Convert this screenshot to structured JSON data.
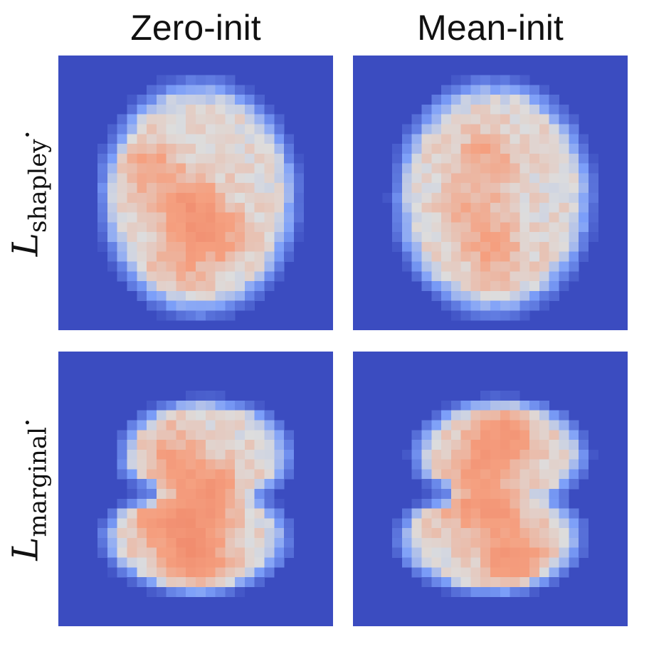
{
  "figure": {
    "column_titles": [
      "Zero-init",
      "Mean-init"
    ],
    "row_titles": [
      {
        "main": "L",
        "sub": "shapley",
        "suffix": "·"
      },
      {
        "main": "L",
        "sub": "marginal",
        "suffix": "·"
      }
    ]
  },
  "colors": {
    "background_low": "#3b4cc0",
    "mid": "#dddddd",
    "high": "#f08a6c",
    "colormap": "coolwarm"
  },
  "chart_data": [
    {
      "type": "heatmap",
      "row": "L_shapley",
      "column": "Zero-init",
      "grid": [
        28,
        28
      ],
      "shape": "oval",
      "hotspots": [
        [
          15,
          13,
          0.9
        ],
        [
          11,
          9,
          0.55
        ],
        [
          18,
          16,
          0.6
        ],
        [
          20,
          12,
          0.5
        ]
      ],
      "value_range": [
        0,
        1
      ]
    },
    {
      "type": "heatmap",
      "row": "L_shapley",
      "column": "Mean-init",
      "grid": [
        28,
        28
      ],
      "shape": "oval",
      "hotspots": [
        [
          10,
          13,
          0.55
        ],
        [
          16,
          12,
          0.5
        ],
        [
          20,
          14,
          0.45
        ]
      ],
      "value_range": [
        0,
        1
      ]
    },
    {
      "type": "heatmap",
      "row": "L_marginal",
      "column": "Zero-init",
      "grid": [
        28,
        28
      ],
      "shape": "digit-3",
      "hotspots": [
        [
          10,
          11,
          0.6
        ],
        [
          14,
          15,
          0.95
        ],
        [
          18,
          12,
          0.75
        ],
        [
          21,
          14,
          0.85
        ],
        [
          16,
          9,
          0.5
        ]
      ],
      "value_range": [
        0,
        1
      ]
    },
    {
      "type": "heatmap",
      "row": "L_marginal",
      "column": "Mean-init",
      "grid": [
        28,
        28
      ],
      "shape": "digit-3",
      "hotspots": [
        [
          8,
          15,
          0.85
        ],
        [
          11,
          12,
          0.55
        ],
        [
          16,
          14,
          0.75
        ],
        [
          21,
          16,
          0.95
        ],
        [
          15,
          10,
          0.45
        ]
      ],
      "value_range": [
        0,
        1
      ]
    }
  ]
}
